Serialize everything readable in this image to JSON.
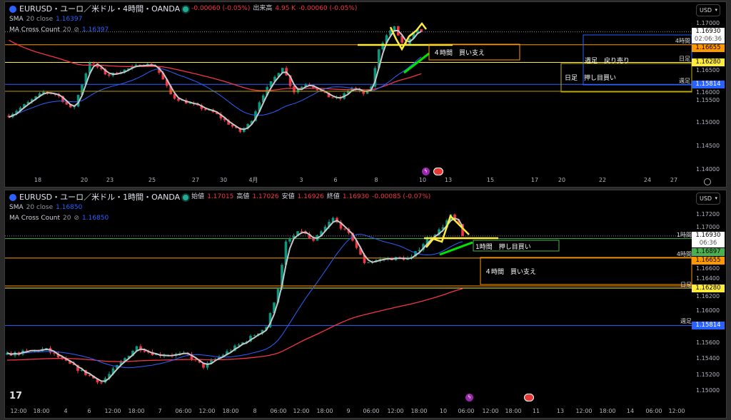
{
  "top": {
    "header": {
      "symbol": "EURUSD・ユーロ／米ドル・4時間・OANDA",
      "change": "-0.00060 (-0.05%)",
      "volume_label": "出来高",
      "volume": "4.95 K",
      "volume_change": "-0.00060 (-0.05%)"
    },
    "sma": {
      "name": "SMA",
      "params": "20 close",
      "value": "1.16397"
    },
    "macc": {
      "name": "MA Cross Count",
      "params": "20",
      "value": "1.16397"
    },
    "currency": "USD",
    "price_tags": [
      {
        "value": "1.16930",
        "sub": "02:06:36",
        "color": "#ffffff"
      },
      {
        "value": "1.16655",
        "color": "#ff9800"
      },
      {
        "value": "1.16280",
        "color": "#ffeb3b"
      },
      {
        "value": "1.15814",
        "color": "#2962ff"
      }
    ],
    "level_labels": [
      "4時間",
      "日足",
      "週足"
    ],
    "annotations": [
      "４時間　買い支え",
      "週足　戻り売り",
      "日足　押し目買い"
    ]
  },
  "bottom": {
    "header": {
      "symbol": "EURUSD・ユーロ／米ドル・1時間・OANDA",
      "open_label": "始値",
      "open": "1.17015",
      "high_label": "高値",
      "high": "1.17026",
      "low_label": "安値",
      "low": "1.16926",
      "close_label": "終値",
      "close": "1.16930",
      "change": "-0.00085 (-0.07%)"
    },
    "sma": {
      "name": "SMA",
      "params": "20 close",
      "value": "1.16850"
    },
    "macc": {
      "name": "MA Cross Count",
      "params": "20",
      "value": "1.16850"
    },
    "currency": "USD",
    "price_tags": [
      {
        "value": "1.16930",
        "sub": "06:36",
        "color": "#ffffff"
      },
      {
        "value": "1.16897",
        "color": "#4caf50"
      },
      {
        "value": "1.16655",
        "color": "#ff9800"
      },
      {
        "value": "1.16280",
        "color": "#ffeb3b"
      },
      {
        "value": "1.15814",
        "color": "#2962ff"
      }
    ],
    "level_labels": [
      "1時間",
      "4時間",
      "日足",
      "週足"
    ],
    "annotations": [
      "1時間　押し目買い",
      "４時間　買い支え"
    ]
  },
  "chart_data": [
    {
      "type": "candlestick",
      "title": "EURUSD・ユーロ／米ドル・4時間・OANDA",
      "ylim": [
        1.1375,
        1.1735
      ],
      "y_ticks": [
        "1.14000",
        "1.14500",
        "1.15000",
        "1.15500",
        "1.16000",
        "1.16500",
        "1.17000"
      ],
      "x_ticks": [
        {
          "label": "18",
          "t": "03-18 00:00"
        },
        {
          "label": "20",
          "t": "03-20 00:00"
        },
        {
          "label": "23",
          "t": "03-23 00:00"
        },
        {
          "label": "25",
          "t": "03-25 00:00"
        },
        {
          "label": "27",
          "t": "03-27 00:00"
        },
        {
          "label": "30",
          "t": "03-30 00:00"
        },
        {
          "label": "4月",
          "t": "04-01 00:00"
        },
        {
          "label": "3",
          "t": "04-03 00:00"
        },
        {
          "label": "6",
          "t": "04-06 00:00"
        },
        {
          "label": "8",
          "t": "04-08 00:00"
        },
        {
          "label": "10",
          "t": "04-10 00:00"
        },
        {
          "label": "13",
          "t": "04-13 00:00"
        },
        {
          "label": "15",
          "t": "04-15 00:00"
        },
        {
          "label": "17",
          "t": "04-17 00:00"
        },
        {
          "label": "20",
          "t": "04-20 00:00"
        },
        {
          "label": "22",
          "t": "04-22 00:00"
        },
        {
          "label": "24",
          "t": "04-24 00:00"
        },
        {
          "label": "27",
          "t": "04-27 00:00"
        }
      ],
      "close_path": [
        [
          "03-16 18:00",
          1.1515
        ],
        [
          "03-18 06:00",
          1.1565
        ],
        [
          "03-18 20:00",
          1.156
        ],
        [
          "03-19 12:00",
          1.1525
        ],
        [
          "03-20 16:00",
          1.163
        ],
        [
          "03-22 18:00",
          1.16
        ],
        [
          "03-24 14:00",
          1.1625
        ],
        [
          "03-25 04:00",
          1.162
        ],
        [
          "03-25 22:00",
          1.1555
        ],
        [
          "03-29 02:00",
          1.152
        ],
        [
          "03-31 02:00",
          1.148
        ],
        [
          "03-31 19:00",
          1.15
        ],
        [
          "04-01 08:00",
          1.1555
        ],
        [
          "04-02 05:00",
          1.162
        ],
        [
          "04-02 16:00",
          1.1565
        ],
        [
          "04-03 13:00",
          1.1585
        ],
        [
          "04-05 10:00",
          1.1555
        ],
        [
          "04-06 05:00",
          1.155
        ],
        [
          "04-06 18:00",
          1.1575
        ],
        [
          "04-07 11:00",
          1.156
        ],
        [
          "04-07 19:00",
          1.158
        ],
        [
          "04-08 03:00",
          1.166
        ],
        [
          "04-08 14:00",
          1.1695
        ],
        [
          "04-08 18:00",
          1.1705
        ],
        [
          "04-09 05:00",
          1.166
        ],
        [
          "04-09 19:00",
          1.17
        ],
        [
          "04-10 03:00",
          1.1693
        ]
      ],
      "levels": [
        {
          "label": "4時間",
          "price": 1.16655,
          "color": "#ff9800"
        },
        {
          "label": "日足",
          "price": 1.1628,
          "color": "#ffeb3b"
        },
        {
          "label": "週足",
          "price": 1.15814,
          "color": "#2962ff"
        }
      ],
      "colors": {
        "up": "#089981",
        "down": "#f23645",
        "sma": "#2962ff",
        "long_ma": "#f23645"
      }
    },
    {
      "type": "candlestick",
      "title": "EURUSD・ユーロ／米ドル・1時間・OANDA",
      "ylim": [
        1.148,
        1.174
      ],
      "y_ticks": [
        "1.15000",
        "1.15200",
        "1.15400",
        "1.15600",
        "1.16000",
        "1.16200",
        "1.16400",
        "1.16600",
        "1.17000",
        "1.17200"
      ],
      "x_ticks": [
        {
          "label": "12:00",
          "t": "04-03 12:00"
        },
        {
          "label": "18:00",
          "t": "04-03 18:00"
        },
        {
          "label": "4",
          "t": "04-04 00:00"
        },
        {
          "label": "6",
          "t": "04-06 00:00"
        },
        {
          "label": "12:00",
          "t": "04-06 12:00"
        },
        {
          "label": "18:00",
          "t": "04-06 18:00"
        },
        {
          "label": "7",
          "t": "04-07 00:00"
        },
        {
          "label": "06:00",
          "t": "04-07 06:00"
        },
        {
          "label": "12:00",
          "t": "04-07 12:00"
        },
        {
          "label": "18:00",
          "t": "04-07 18:00"
        },
        {
          "label": "8",
          "t": "04-08 00:00"
        },
        {
          "label": "06:00",
          "t": "04-08 06:00"
        },
        {
          "label": "12:00",
          "t": "04-08 12:00"
        },
        {
          "label": "18:00",
          "t": "04-08 18:00"
        },
        {
          "label": "9",
          "t": "04-09 00:00"
        },
        {
          "label": "06:00",
          "t": "04-09 06:00"
        },
        {
          "label": "12:00",
          "t": "04-09 12:00"
        },
        {
          "label": "18:00",
          "t": "04-09 18:00"
        },
        {
          "label": "10",
          "t": "04-10 00:00"
        },
        {
          "label": "06:00",
          "t": "04-10 06:00"
        },
        {
          "label": "12:00",
          "t": "04-10 12:00"
        },
        {
          "label": "18:00",
          "t": "04-10 18:00"
        },
        {
          "label": "11",
          "t": "04-11 00:00"
        },
        {
          "label": "13",
          "t": "04-13 00:00"
        },
        {
          "label": "12:00",
          "t": "04-13 12:00"
        },
        {
          "label": "18:00",
          "t": "04-13 18:00"
        },
        {
          "label": "14",
          "t": "04-14 00:00"
        },
        {
          "label": "06:00",
          "t": "04-14 06:00"
        },
        {
          "label": "12:00",
          "t": "04-14 12:00"
        }
      ],
      "close_path": [
        [
          "04-03 09:00",
          1.1545
        ],
        [
          "04-03 19:00",
          1.1552
        ],
        [
          "04-04 02:00",
          1.1535
        ],
        [
          "04-06 06:00",
          1.151
        ],
        [
          "04-06 14:00",
          1.1535
        ],
        [
          "04-06 18:00",
          1.1555
        ],
        [
          "04-06 23:00",
          1.1545
        ],
        [
          "04-07 07:00",
          1.1545
        ],
        [
          "04-07 11:00",
          1.153
        ],
        [
          "04-07 16:00",
          1.1545
        ],
        [
          "04-07 21:00",
          1.156
        ],
        [
          "04-08 03:00",
          1.158
        ],
        [
          "04-08 06:00",
          1.163
        ],
        [
          "04-08 08:00",
          1.1685
        ],
        [
          "04-08 12:00",
          1.17
        ],
        [
          "04-08 15:00",
          1.1685
        ],
        [
          "04-08 20:00",
          1.1715
        ],
        [
          "04-09 01:00",
          1.169
        ],
        [
          "04-09 04:00",
          1.166
        ],
        [
          "04-09 10:00",
          1.1665
        ],
        [
          "04-09 16:00",
          1.1665
        ],
        [
          "04-09 20:00",
          1.169
        ],
        [
          "04-09 23:00",
          1.17
        ],
        [
          "04-10 02:00",
          1.1718
        ],
        [
          "04-10 06:00",
          1.1693
        ]
      ],
      "levels": [
        {
          "label": "1時間",
          "price": 1.16897,
          "color": "#4caf50"
        },
        {
          "label": "4時間",
          "price": 1.16655,
          "color": "#ff9800"
        },
        {
          "label": "日足",
          "price": 1.1628,
          "color": "#ffeb3b"
        },
        {
          "label": "週足",
          "price": 1.15814,
          "color": "#2962ff"
        }
      ],
      "colors": {
        "up": "#089981",
        "down": "#f23645",
        "sma": "#2962ff",
        "long_ma": "#f23645"
      }
    }
  ]
}
